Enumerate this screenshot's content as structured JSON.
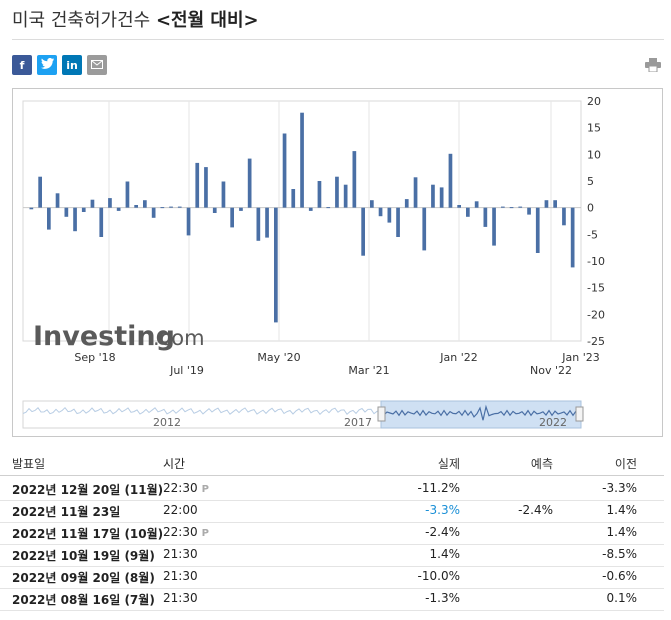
{
  "page": {
    "title_main": "미국 건축허가건수 ",
    "title_sub": "<전월 대비>"
  },
  "share": {
    "facebook": "f",
    "twitter": "t",
    "linkedin": "in",
    "email_icon": "envelope-icon",
    "print_icon": "printer-icon"
  },
  "chart_data": {
    "type": "bar",
    "watermark": "Investing.com",
    "ylim": [
      -25,
      20
    ],
    "yticks": [
      20,
      15,
      10,
      5,
      0,
      -5,
      -10,
      -15,
      -20,
      -25
    ],
    "x_labels_top": [
      "Sep '18",
      "May '20",
      "Jan '22",
      "Jan '23"
    ],
    "x_labels_bottom": [
      "Jul '19",
      "Mar '21",
      "Nov '22"
    ],
    "navigator_labels": [
      "2012",
      "2017",
      "2022"
    ],
    "bar_color": "#4a6fa5",
    "values": [
      -0.3,
      5.8,
      -4.1,
      2.7,
      -1.7,
      -4.4,
      -0.8,
      1.5,
      -5.5,
      1.8,
      -0.6,
      4.9,
      0.5,
      1.4,
      -1.9,
      0.1,
      0.2,
      0.2,
      -5.2,
      8.4,
      7.6,
      -1.0,
      4.9,
      -3.7,
      -0.6,
      9.2,
      -6.2,
      -5.6,
      -21.5,
      13.9,
      3.5,
      17.8,
      -0.6,
      5.0,
      0.1,
      5.8,
      4.3,
      10.6,
      -9.0,
      1.4,
      -1.6,
      -2.8,
      -5.5,
      1.6,
      5.7,
      -8.0,
      4.3,
      3.8,
      10.1,
      0.5,
      -1.7,
      1.2,
      -3.6,
      -7.1,
      0.2,
      0.1,
      0.2,
      -1.3,
      -8.5,
      1.4,
      1.4,
      -3.3,
      -11.2
    ]
  },
  "table": {
    "headers": {
      "date": "발표일",
      "time": "시간",
      "actual": "실제",
      "forecast": "예측",
      "previous": "이전"
    },
    "rows": [
      {
        "date": "2022년 12월 20일 (11월)",
        "time": "22:30",
        "flag": "P",
        "actual": "-11.2%",
        "forecast": "",
        "previous": "-3.3%"
      },
      {
        "date": "2022년 11월 23일",
        "time": "22:00",
        "flag": "",
        "actual": "-3.3%",
        "forecast": "-2.4%",
        "previous": "1.4%"
      },
      {
        "date": "2022년 11월 17일 (10월)",
        "time": "22:30",
        "flag": "P",
        "actual": "-2.4%",
        "forecast": "",
        "previous": "1.4%"
      },
      {
        "date": "2022년 10월 19일 (9월)",
        "time": "21:30",
        "flag": "",
        "actual": "1.4%",
        "forecast": "",
        "previous": "-8.5%"
      },
      {
        "date": "2022년 09월 20일 (8월)",
        "time": "21:30",
        "flag": "",
        "actual": "-10.0%",
        "forecast": "",
        "previous": "-0.6%"
      },
      {
        "date": "2022년 08월 16일 (7월)",
        "time": "21:30",
        "flag": "",
        "actual": "-1.3%",
        "forecast": "",
        "previous": "0.1%"
      }
    ],
    "actual_highlight_color": "#1a8fd6"
  }
}
